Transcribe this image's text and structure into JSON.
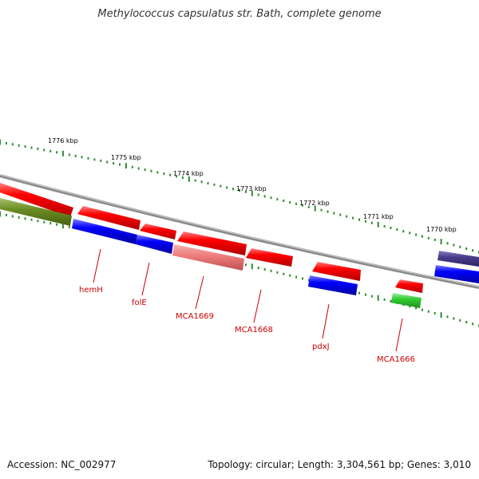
{
  "title": "Methylococcus capsulatus str. Bath, complete genome",
  "footer": {
    "accession": "Accession: NC_002977",
    "topology": "Topology: circular; Length: 3,304,561 bp; Genes: 3,010"
  },
  "scale_labels": [
    "1776 kbp",
    "1775 kbp",
    "1774 kbp",
    "1773 kbp",
    "1772 kbp",
    "1771 kbp",
    "1770 kbp"
  ],
  "gene_labels": [
    "hemH",
    "folE",
    "MCA1669",
    "MCA1668",
    "pdxJ",
    "MCA1666"
  ],
  "colors": {
    "backbone": "#8a8a8a",
    "tick": "#2e8b2e",
    "cds": "#ff0000",
    "cds_light": "#f08080",
    "blue": "#0000ee",
    "olive": "#6b8e23",
    "green": "#32cd32",
    "purple": "#4b3c8c",
    "label_red": "#cc0000"
  }
}
